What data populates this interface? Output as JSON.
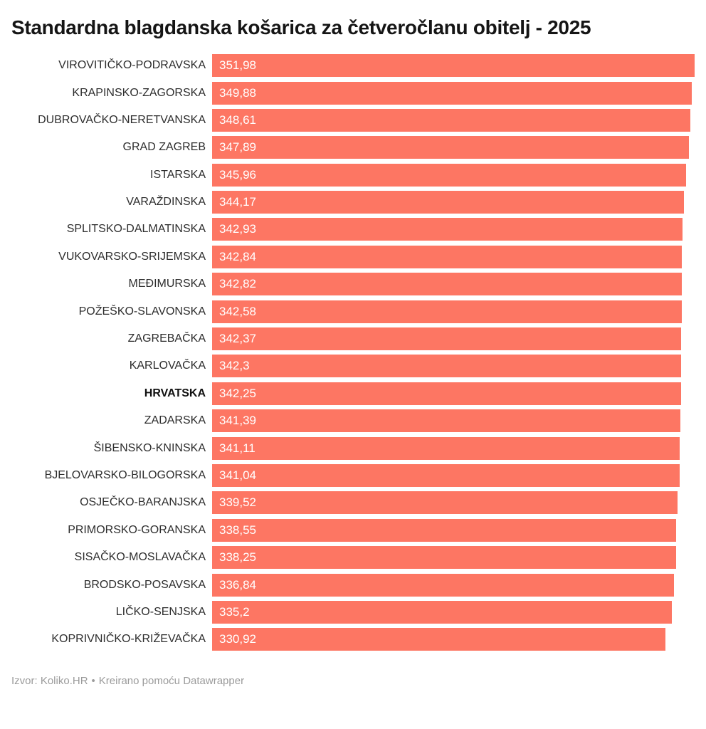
{
  "chart_data": {
    "type": "bar",
    "orientation": "horizontal",
    "title": "Standardna blagdanska košarica za četveročlanu obitelj - 2025",
    "categories": [
      "VIROVITIČKO-PODRAVSKA",
      "KRAPINSKO-ZAGORSKA",
      "DUBROVAČKO-NERETVANSKA",
      "GRAD ZAGREB",
      "ISTARSKA",
      "VARAŽDINSKA",
      "SPLITSKO-DALMATINSKA",
      "VUKOVARSKO-SRIJEMSKA",
      "MEĐIMURSKA",
      "POŽEŠKO-SLAVONSKA",
      "ZAGREBAČKA",
      "KARLOVAČKA",
      "HRVATSKA",
      "ZADARSKA",
      "ŠIBENSKO-KNINSKA",
      "BJELOVARSKO-BILOGORSKA",
      "OSJEČKO-BARANJSKA",
      "PRIMORSKO-GORANSKA",
      "SISAČKO-MOSLAVAČKA",
      "BRODSKO-POSAVSKA",
      "LIČKO-SENJSKA",
      "KOPRIVNIČKO-KRIŽEVAČKA"
    ],
    "values": [
      351.98,
      349.88,
      348.61,
      347.89,
      345.96,
      344.17,
      342.93,
      342.84,
      342.82,
      342.58,
      342.37,
      342.3,
      342.25,
      341.39,
      341.11,
      341.04,
      339.52,
      338.55,
      338.25,
      336.84,
      335.2,
      330.92
    ],
    "value_labels": [
      "351,98",
      "349,88",
      "348,61",
      "347,89",
      "345,96",
      "344,17",
      "342,93",
      "342,84",
      "342,82",
      "342,58",
      "342,37",
      "342,3",
      "342,25",
      "341,39",
      "341,11",
      "341,04",
      "339,52",
      "338,55",
      "338,25",
      "336,84",
      "335,2",
      "330,92"
    ],
    "highlight_category": "HRVATSKA",
    "xlim": [
      0,
      351.98
    ],
    "grid": false,
    "legend": false,
    "colors": {
      "bar": "#FD7663",
      "value_text": "#FFFFFF",
      "label_text": "#2D2D2D",
      "highlight_label_text": "#111111",
      "title_text": "#151515",
      "footer_text": "#9B9B9B",
      "background": "#FFFFFF"
    }
  },
  "footer": {
    "source_label": "Izvor: Koliko.HR",
    "separator": "•",
    "attribution": "Kreirano pomoću Datawrapper"
  }
}
